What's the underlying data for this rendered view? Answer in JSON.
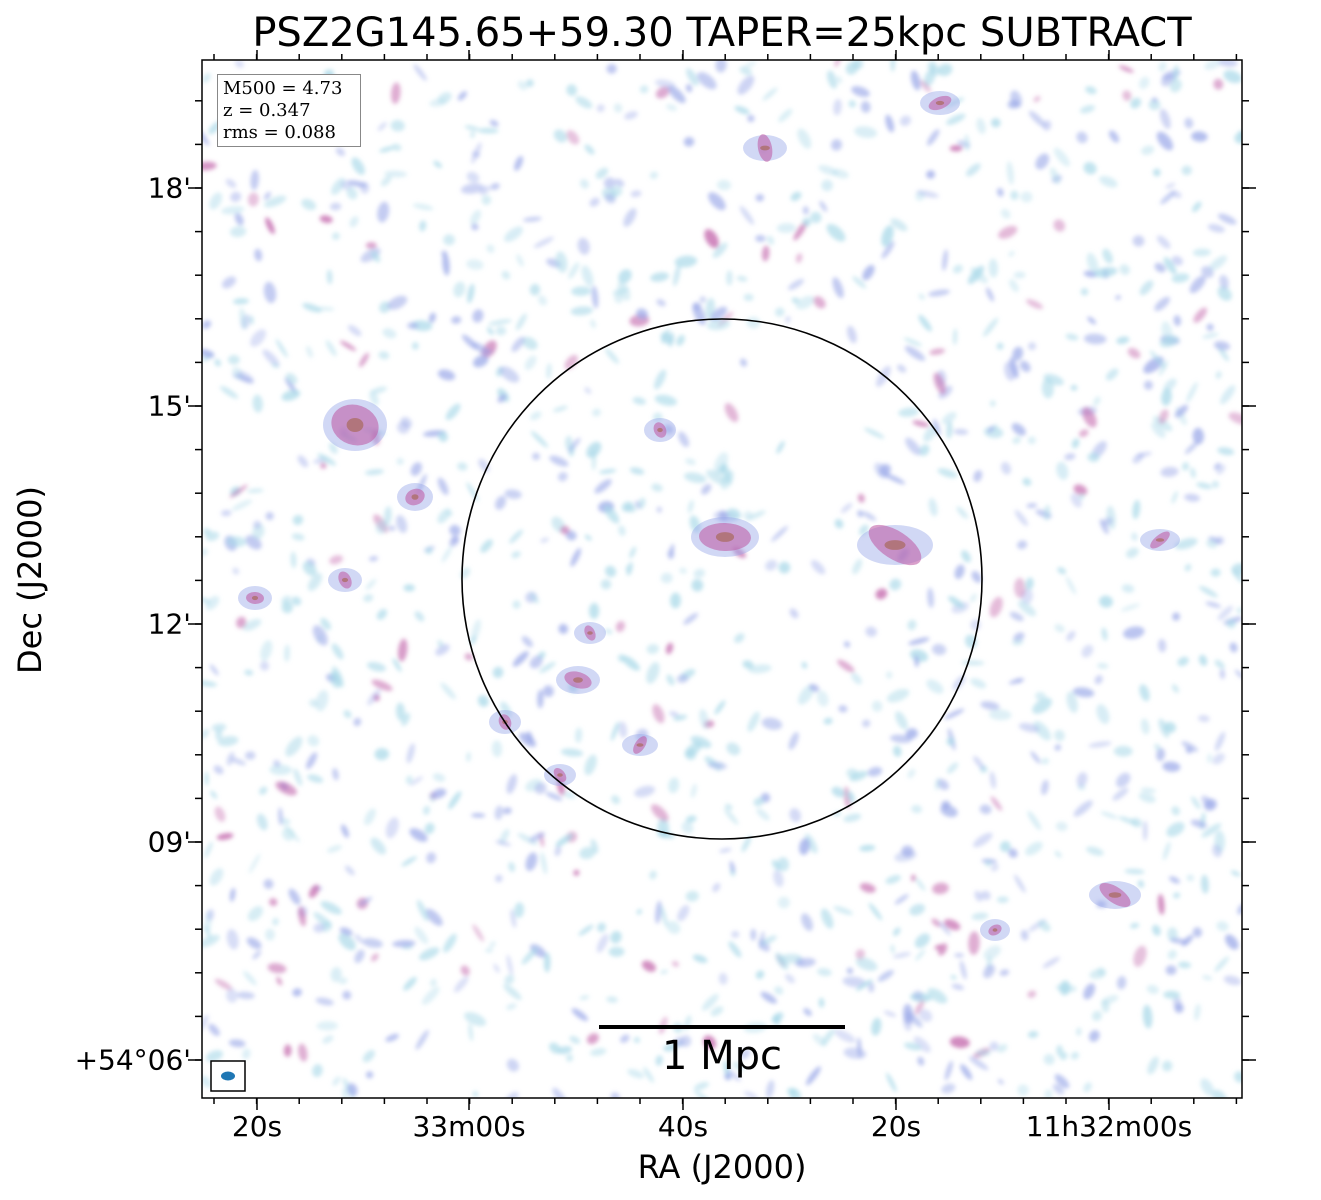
{
  "title": "PSZ2G145.65+59.30 TAPER=25kpc SUBTRACT",
  "legend": {
    "mass": "M500 = 4.73",
    "redshift": "z = 0.347",
    "rms": "rms = 0.088"
  },
  "axes": {
    "xlabel": "RA (J2000)",
    "ylabel": "Dec (J2000)",
    "xticks": [
      "20s",
      "33m00s",
      "40s",
      "20s",
      "11h32m00s"
    ],
    "yticks": [
      "+54°06'",
      "09'",
      "12'",
      "15'",
      "18'"
    ]
  },
  "scale_bar": {
    "label": "1 Mpc"
  },
  "colors": {
    "faint_emission": "#a8d8e8",
    "mid_emission": "#9aa8e8",
    "bright_emission": "#c060a8",
    "peak_emission": "#a06040",
    "beam": "#1f77b4"
  },
  "icons": {
    "beam_marker": "beam-ellipse-icon",
    "aperture": "r500-circle-icon"
  }
}
